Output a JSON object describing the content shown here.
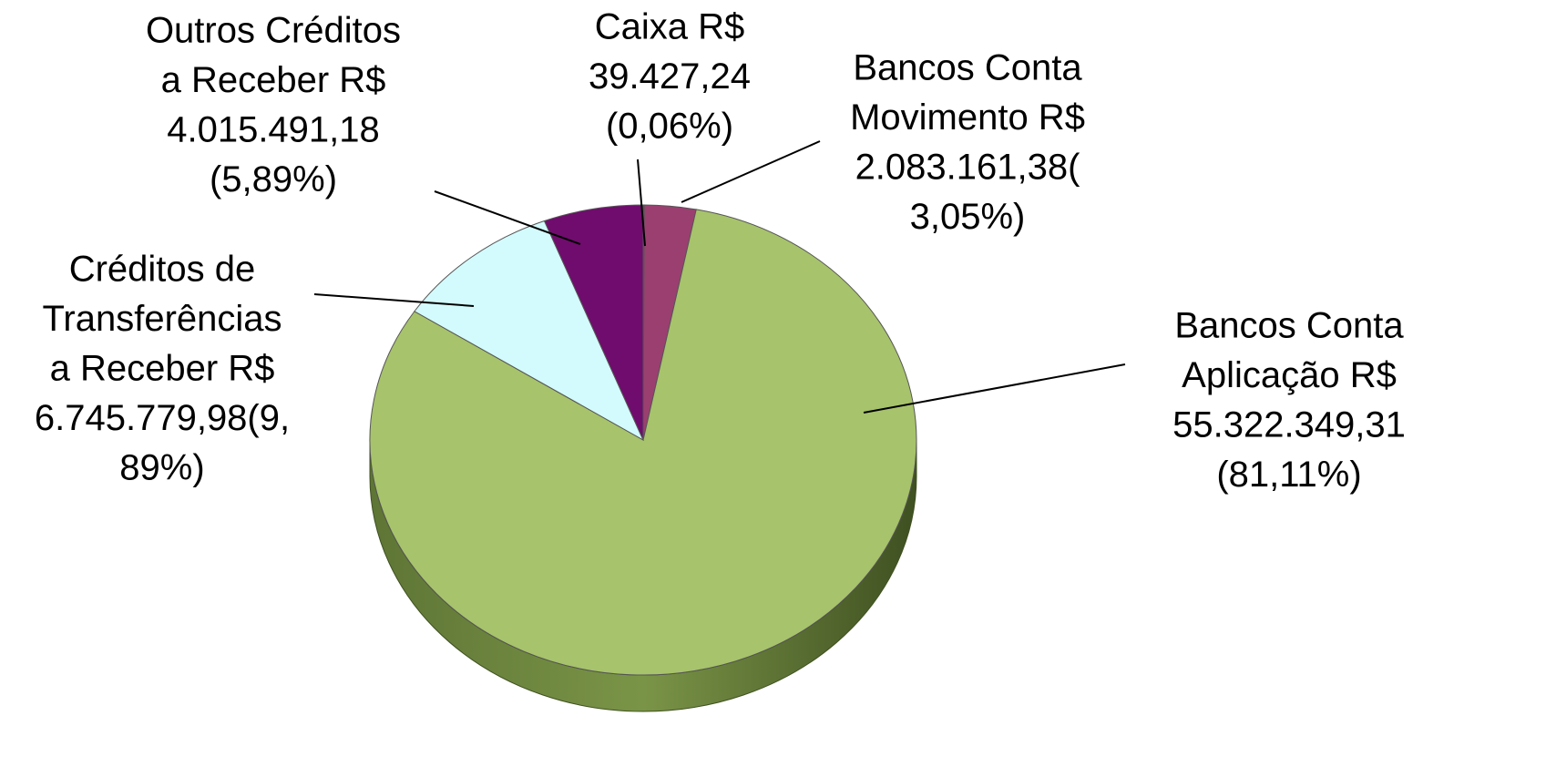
{
  "chart_data": {
    "type": "pie",
    "categories": [
      "Caixa",
      "Bancos Conta Movimento",
      "Bancos Conta Aplicação",
      "Créditos de Transferências a Receber",
      "Outros Créditos a Receber"
    ],
    "values": [
      0.06,
      3.05,
      81.11,
      9.89,
      5.89
    ],
    "value_labels": [
      [
        "Caixa R$",
        "39.427,24",
        "(0,06%)"
      ],
      [
        "Bancos Conta",
        "Movimento R$",
        "2.083.161,38(",
        "3,05%)"
      ],
      [
        "Bancos Conta",
        "Aplicação R$",
        "55.322.349,31",
        "(81,11%)"
      ],
      [
        "Créditos de",
        "Transferências",
        "a Receber R$",
        "6.745.779,98(9,",
        "89%)"
      ],
      [
        "Outros Créditos",
        "a Receber R$",
        "4.015.491,18",
        "(5,89%)"
      ]
    ],
    "colors": [
      "#7a2a6e",
      "#9b3f70",
      "#a7c36b",
      "#d3fbfd",
      "#700c6d"
    ]
  }
}
